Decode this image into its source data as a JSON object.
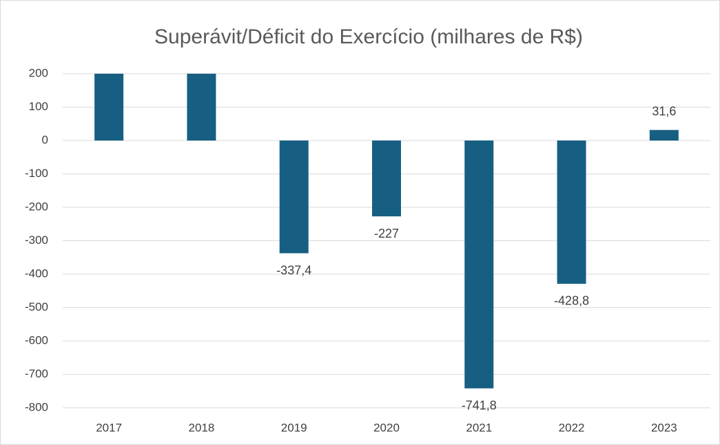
{
  "chart_data": {
    "type": "bar",
    "title": "Superávit/Déficit do Exercício (milhares de R$)",
    "categories": [
      "2017",
      "2018",
      "2019",
      "2020",
      "2021",
      "2022",
      "2023"
    ],
    "values": [
      200,
      200,
      -337.4,
      -227,
      -741.8,
      -428.8,
      31.6
    ],
    "value_labels": [
      null,
      null,
      "-337,4",
      "-227",
      "-741,8",
      "-428,8",
      "31,6"
    ],
    "color": "#175f82",
    "ylim": [
      -800,
      200
    ],
    "yticks": [
      200,
      100,
      0,
      -100,
      -200,
      -300,
      -400,
      -500,
      -600,
      -700,
      -800
    ],
    "grid": true
  }
}
